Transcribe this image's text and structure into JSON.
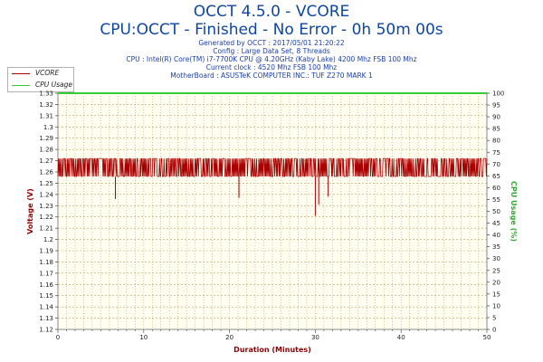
{
  "header": {
    "title": "OCCT 4.5.0 - VCORE",
    "subtitle": "CPU:OCCT - Finished - No Error - 0h 50m 00s",
    "info_lines": [
      "Generated by OCCT : 2017/05/01 21:20:22",
      "Config : Large Data Set, 8 Threads",
      "CPU : Intel(R) Core(TM) i7-7700K CPU @ 4.20GHz (Kaby Lake) 4200 Mhz FSB 100 Mhz",
      "Current clock : 4520 Mhz FSB 100 Mhz",
      "MotherBoard : ASUSTeK COMPUTER INC.: TUF Z270 MARK 1"
    ]
  },
  "colors": {
    "vcore": "#a80000",
    "cpu_usage": "#33cc33",
    "plot_bg": "#fffef0",
    "grid": "#b8a060",
    "axis_left": "#8b0000",
    "axis_right": "#33aa33",
    "title": "#0d47a1"
  },
  "chart_data": {
    "type": "line",
    "title": "OCCT 4.5.0 - VCORE",
    "xlabel": "Duration (Minutes)",
    "ylabel": "Voltage (V)",
    "ylabel_right": "CPU Usage (%)",
    "xlim": [
      0,
      50
    ],
    "ylim": [
      1.12,
      1.33
    ],
    "ylim_right": [
      0,
      100
    ],
    "x_ticks": [
      0,
      10,
      20,
      30,
      40,
      50
    ],
    "y_ticks": [
      "1.12",
      "1.13",
      "1.14",
      "1.15",
      "1.16",
      "1.17",
      "1.18",
      "1.19",
      "1.2",
      "1.21",
      "1.22",
      "1.23",
      "1.24",
      "1.25",
      "1.26",
      "1.27",
      "1.28",
      "1.29",
      "1.3",
      "1.31",
      "1.32",
      "1.33"
    ],
    "y_ticks_right": [
      "0",
      "5",
      "10",
      "15",
      "20",
      "25",
      "30",
      "35",
      "40",
      "45",
      "50",
      "55",
      "60",
      "65",
      "70",
      "75",
      "80",
      "85",
      "90",
      "95",
      "100"
    ],
    "grid": true,
    "legend_position": "top-left",
    "series": [
      {
        "name": "VCORE",
        "axis": "left",
        "band_low": 1.256,
        "band_high": 1.272,
        "dips": [
          {
            "x": 6.7,
            "y": 1.236
          },
          {
            "x": 21.1,
            "y": 1.237
          },
          {
            "x": 30.0,
            "y": 1.221
          },
          {
            "x": 30.4,
            "y": 1.231
          },
          {
            "x": 31.5,
            "y": 1.238
          }
        ]
      },
      {
        "name": "CPU Usage",
        "axis": "right",
        "values": [
          100,
          100
        ]
      }
    ]
  }
}
